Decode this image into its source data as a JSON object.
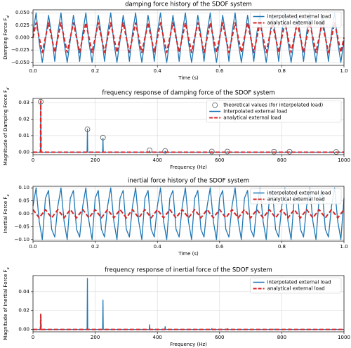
{
  "chart_data": [
    {
      "type": "line",
      "title": "damping force history of the SDOF system",
      "xlabel": "Time (s)",
      "ylabel": "Damping Force F",
      "ylabel_subscript": "d",
      "xlim": [
        0,
        1
      ],
      "xticks": [
        {
          "value": 0,
          "label": "0.0"
        },
        0.2,
        0.4,
        0.6,
        0.8,
        {
          "value": 1,
          "label": "1.0"
        }
      ],
      "ylim": [
        -0.056,
        0.056
      ],
      "yticks": [
        {
          "value": -0.05,
          "label": "−0.050"
        },
        {
          "value": -0.025,
          "label": "−0.025"
        },
        {
          "value": 0,
          "label": "0.000"
        },
        {
          "value": 0.025,
          "label": "0.025"
        },
        {
          "value": 0.05,
          "label": "0.050"
        }
      ],
      "grid": true,
      "legend_loc": "upper right",
      "x": [
        0,
        0.01,
        0.02,
        0.03,
        0.04,
        0.05,
        0.06,
        0.07,
        0.08,
        0.09,
        0.1,
        0.11,
        0.12,
        0.13,
        0.14,
        0.15,
        0.16,
        0.17,
        0.18,
        0.19,
        0.2,
        0.21,
        0.22,
        0.23,
        0.24,
        0.25,
        0.26,
        0.27,
        0.28,
        0.29,
        0.3,
        0.31,
        0.32,
        0.33,
        0.34,
        0.35,
        0.36,
        0.37,
        0.38,
        0.39,
        0.4,
        0.41,
        0.42,
        0.43,
        0.44,
        0.45,
        0.46,
        0.47,
        0.48,
        0.49,
        0.5,
        0.51,
        0.52,
        0.53,
        0.54,
        0.55,
        0.56,
        0.57,
        0.58,
        0.59,
        0.6,
        0.61,
        0.62,
        0.63,
        0.64,
        0.65,
        0.66,
        0.67,
        0.68,
        0.69,
        0.7,
        0.71,
        0.72,
        0.73,
        0.74,
        0.75,
        0.76,
        0.77,
        0.78,
        0.79,
        0.8,
        0.81,
        0.82,
        0.83,
        0.84,
        0.85,
        0.86,
        0.87,
        0.88,
        0.89,
        0.9,
        0.91,
        0.92,
        0.93,
        0.94,
        0.95,
        0.96,
        0.97,
        0.98,
        0.99,
        1
      ],
      "series": [
        {
          "name": "interpolated external load",
          "color": "#1f77b4",
          "style": "solid",
          "values": [
            0.01,
            0.05,
            -0.01,
            -0.05,
            -0.005,
            0.045,
            0.005,
            -0.048,
            0.01,
            0.05,
            -0.01,
            -0.05,
            -0.005,
            0.045,
            0.005,
            -0.048,
            0.01,
            0.05,
            -0.01,
            -0.05,
            -0.005,
            0.045,
            0.005,
            -0.048,
            0.01,
            0.05,
            -0.01,
            -0.05,
            -0.005,
            0.045,
            0.005,
            -0.048,
            0.01,
            0.05,
            -0.01,
            -0.05,
            -0.005,
            0.045,
            0.005,
            -0.048,
            0.01,
            0.05,
            -0.01,
            -0.05,
            -0.005,
            0.045,
            0.005,
            -0.048,
            0.01,
            0.05,
            -0.01,
            -0.05,
            -0.005,
            0.045,
            0.005,
            -0.048,
            0.01,
            0.05,
            -0.01,
            -0.05,
            -0.005,
            0.045,
            0.005,
            -0.048,
            0.01,
            0.05,
            -0.01,
            -0.05,
            -0.005,
            0.045,
            0.005,
            -0.048,
            0.01,
            0.05,
            -0.01,
            -0.05,
            -0.005,
            0.045,
            0.005,
            -0.048,
            0.01,
            0.05,
            -0.01,
            -0.05,
            -0.005,
            0.045,
            0.005,
            -0.048,
            0.01,
            0.05,
            -0.01,
            -0.05,
            -0.005,
            0.045,
            0.005,
            -0.048,
            0.01,
            0.05,
            -0.01,
            -0.05,
            -0.005
          ]
        },
        {
          "name": "analytical external load",
          "color": "#d62728",
          "style": "dashed",
          "values": [
            0,
            0.03,
            0,
            -0.03,
            0,
            0.03,
            0,
            -0.03,
            0,
            0.03,
            0,
            -0.03,
            0,
            0.03,
            0,
            -0.03,
            0,
            0.03,
            0,
            -0.03,
            0,
            0.03,
            0,
            -0.03,
            0,
            0.03,
            0,
            -0.03,
            0,
            0.03,
            0,
            -0.03,
            0,
            0.03,
            0,
            -0.03,
            0,
            0.03,
            0,
            -0.03,
            0,
            0.03,
            0,
            -0.03,
            0,
            0.03,
            0,
            -0.03,
            0,
            0.03,
            0,
            -0.03,
            0,
            0.03,
            0,
            -0.03,
            0,
            0.03,
            0,
            -0.03,
            0,
            0.03,
            0,
            -0.03,
            0,
            0.03,
            0,
            -0.03,
            0,
            0.03,
            0,
            -0.03,
            0,
            0.03,
            0,
            -0.03,
            0,
            0.03,
            0,
            -0.03,
            0,
            0.03,
            0,
            -0.03,
            0,
            0.03,
            0,
            -0.03,
            0,
            0.03,
            0,
            -0.03,
            0,
            0.03,
            0,
            -0.03,
            0,
            0.03,
            0,
            -0.03,
            0
          ]
        }
      ]
    },
    {
      "type": "line",
      "title": "frequency response of damping force of the SDOF system",
      "xlabel": "Frequency (Hz)",
      "ylabel": "Magnitude of Damping Force F",
      "ylabel_subscript": "d",
      "xlim": [
        0,
        1000
      ],
      "xticks": [
        0,
        200,
        400,
        600,
        800,
        1000
      ],
      "ylim": [
        -0.0015,
        0.0325
      ],
      "yticks": [
        {
          "value": 0,
          "label": "0.00"
        },
        0.01,
        0.02,
        0.03
      ],
      "grid": true,
      "legend_loc": "upper right",
      "points": {
        "name": "theoretical values (for interpolated load)",
        "color": "#555555",
        "x": [
          25,
          175,
          225,
          375,
          425,
          575,
          625,
          775,
          825,
          975
        ],
        "values": [
          0.0305,
          0.0138,
          0.0088,
          0.0011,
          0.0008,
          0.0004,
          0.0004,
          0.0003,
          0.0003,
          0.0002
        ]
      },
      "x": [
        0,
        24,
        25,
        26,
        174,
        175,
        176,
        224,
        225,
        226,
        374,
        375,
        376,
        424,
        425,
        426,
        574,
        575,
        576,
        624,
        625,
        626,
        774,
        775,
        776,
        824,
        825,
        826,
        974,
        975,
        976,
        1000
      ],
      "series": [
        {
          "name": "interpolated external load",
          "color": "#1f77b4",
          "style": "solid",
          "values": [
            0,
            0,
            0.031,
            0,
            0,
            0.014,
            0,
            0,
            0.0085,
            0,
            0,
            0.0008,
            0,
            0,
            0.0006,
            0,
            0,
            0.0003,
            0,
            0,
            0.0003,
            0,
            0,
            0.0002,
            0,
            0,
            0.0002,
            0,
            0,
            0.0001,
            0,
            0
          ]
        },
        {
          "name": "analytical external load",
          "color": "#d62728",
          "style": "dashed",
          "values": [
            0,
            0,
            0.031,
            0,
            0,
            0,
            0,
            0,
            0,
            0,
            0,
            0,
            0,
            0,
            0,
            0,
            0,
            0,
            0,
            0,
            0,
            0,
            0,
            0,
            0,
            0,
            0,
            0,
            0,
            0,
            0,
            0
          ]
        }
      ]
    },
    {
      "type": "line",
      "title": "inertial force history of the SDOF system",
      "xlabel": "Time (s)",
      "ylabel": "Inertial Force F",
      "ylabel_subscript": "a",
      "xlim": [
        0,
        1
      ],
      "xticks": [
        {
          "value": 0,
          "label": "0.0"
        },
        0.2,
        0.4,
        0.6,
        0.8,
        {
          "value": 1,
          "label": "1.0"
        }
      ],
      "ylim": [
        -0.106,
        0.106
      ],
      "yticks": [
        {
          "value": -0.1,
          "label": "−0.10"
        },
        {
          "value": -0.05,
          "label": "−0.05"
        },
        {
          "value": 0,
          "label": "0.00"
        },
        0.05,
        {
          "value": 0.1,
          "label": "0.10"
        }
      ],
      "grid": true,
      "legend_loc": "upper right",
      "x": [
        0,
        0.01,
        0.02,
        0.03,
        0.04,
        0.05,
        0.06,
        0.07,
        0.08,
        0.09,
        0.1,
        0.11,
        0.12,
        0.13,
        0.14,
        0.15,
        0.16,
        0.17,
        0.18,
        0.19,
        0.2,
        0.21,
        0.22,
        0.23,
        0.24,
        0.25,
        0.26,
        0.27,
        0.28,
        0.29,
        0.3,
        0.31,
        0.32,
        0.33,
        0.34,
        0.35,
        0.36,
        0.37,
        0.38,
        0.39,
        0.4,
        0.41,
        0.42,
        0.43,
        0.44,
        0.45,
        0.46,
        0.47,
        0.48,
        0.49,
        0.5,
        0.51,
        0.52,
        0.53,
        0.54,
        0.55,
        0.56,
        0.57,
        0.58,
        0.59,
        0.6,
        0.61,
        0.62,
        0.63,
        0.64,
        0.65,
        0.66,
        0.67,
        0.68,
        0.69,
        0.7,
        0.71,
        0.72,
        0.73,
        0.74,
        0.75,
        0.76,
        0.77,
        0.78,
        0.79,
        0.8,
        0.81,
        0.82,
        0.83,
        0.84,
        0.85,
        0.86,
        0.87,
        0.88,
        0.89,
        0.9,
        0.91,
        0.92,
        0.93,
        0.94,
        0.95,
        0.96,
        0.97,
        0.98,
        0.99,
        1
      ],
      "series": [
        {
          "name": "interpolated external load",
          "color": "#1f77b4",
          "style": "solid",
          "values": [
            0.03,
            0.1,
            -0.03,
            -0.1,
            0.06,
            0.09,
            -0.06,
            -0.09,
            0.03,
            0.1,
            -0.03,
            -0.1,
            0.06,
            0.09,
            -0.06,
            -0.09,
            0.03,
            0.1,
            -0.03,
            -0.1,
            0.06,
            0.09,
            -0.06,
            -0.09,
            0.03,
            0.1,
            -0.03,
            -0.1,
            0.06,
            0.09,
            -0.06,
            -0.09,
            0.03,
            0.1,
            -0.03,
            -0.1,
            0.06,
            0.09,
            -0.06,
            -0.09,
            0.03,
            0.1,
            -0.03,
            -0.1,
            0.06,
            0.09,
            -0.06,
            -0.09,
            0.03,
            0.1,
            -0.03,
            -0.1,
            0.06,
            0.09,
            -0.06,
            -0.09,
            0.03,
            0.1,
            -0.03,
            -0.1,
            0.06,
            0.09,
            -0.06,
            -0.09,
            0.03,
            0.1,
            -0.03,
            -0.1,
            0.06,
            0.09,
            -0.06,
            -0.09,
            0.03,
            0.1,
            -0.03,
            -0.1,
            0.06,
            0.09,
            -0.06,
            -0.09,
            0.03,
            0.1,
            -0.03,
            -0.1,
            0.06,
            0.09,
            -0.06,
            -0.09,
            0.03,
            0.1,
            -0.03,
            -0.1,
            0.06,
            0.09,
            -0.06,
            -0.09,
            0.03,
            0.1,
            -0.03,
            -0.1,
            0.06
          ]
        },
        {
          "name": "analytical external load",
          "color": "#d62728",
          "style": "dashed",
          "values": [
            0.016,
            0,
            -0.016,
            0,
            0.016,
            0,
            -0.016,
            0,
            0.016,
            0,
            -0.016,
            0,
            0.016,
            0,
            -0.016,
            0,
            0.016,
            0,
            -0.016,
            0,
            0.016,
            0,
            -0.016,
            0,
            0.016,
            0,
            -0.016,
            0,
            0.016,
            0,
            -0.016,
            0,
            0.016,
            0,
            -0.016,
            0,
            0.016,
            0,
            -0.016,
            0,
            0.016,
            0,
            -0.016,
            0,
            0.016,
            0,
            -0.016,
            0,
            0.016,
            0,
            -0.016,
            0,
            0.016,
            0,
            -0.016,
            0,
            0.016,
            0,
            -0.016,
            0,
            0.016,
            0,
            -0.016,
            0,
            0.016,
            0,
            -0.016,
            0,
            0.016,
            0,
            -0.016,
            0,
            0.016,
            0,
            -0.016,
            0,
            0.016,
            0,
            -0.016,
            0,
            0.016,
            0,
            -0.016,
            0,
            0.016,
            0,
            -0.016,
            0,
            0.016,
            0,
            -0.016,
            0,
            0.016,
            0,
            -0.016,
            0,
            0.016,
            0,
            -0.016,
            0,
            0.016
          ]
        }
      ]
    },
    {
      "type": "line",
      "title": "frequency response of inertial force of the SDOF system",
      "xlabel": "Frequency (Hz)",
      "ylabel": "Magnitude of Inertial Force F",
      "ylabel_subscript": "a",
      "xlim": [
        0,
        1000
      ],
      "xticks": [
        0,
        200,
        400,
        600,
        800,
        1000
      ],
      "ylim": [
        -0.0025,
        0.057
      ],
      "yticks": [
        {
          "value": 0,
          "label": "0.00"
        },
        0.02,
        0.04
      ],
      "grid": true,
      "legend_loc": "upper right",
      "x": [
        0,
        24,
        25,
        26,
        174,
        175,
        176,
        224,
        225,
        226,
        374,
        375,
        376,
        424,
        425,
        426,
        574,
        575,
        576,
        624,
        625,
        626,
        774,
        775,
        776,
        824,
        825,
        826,
        974,
        975,
        976,
        1000
      ],
      "series": [
        {
          "name": "interpolated external load",
          "color": "#1f77b4",
          "style": "solid",
          "values": [
            0,
            0,
            0.016,
            0,
            0,
            0.054,
            0,
            0,
            0.031,
            0,
            0,
            0.005,
            0,
            0,
            0.003,
            0,
            0,
            0.001,
            0,
            0,
            0.001,
            0,
            0,
            0.0005,
            0,
            0,
            0.0005,
            0,
            0,
            0.0003,
            0,
            0
          ]
        },
        {
          "name": "analytical external load",
          "color": "#d62728",
          "style": "dashed",
          "values": [
            0,
            0,
            0.016,
            0,
            0,
            0,
            0,
            0,
            0,
            0,
            0,
            0,
            0,
            0,
            0,
            0,
            0,
            0,
            0,
            0,
            0,
            0,
            0,
            0,
            0,
            0,
            0,
            0,
            0,
            0,
            0,
            0
          ]
        }
      ]
    }
  ]
}
